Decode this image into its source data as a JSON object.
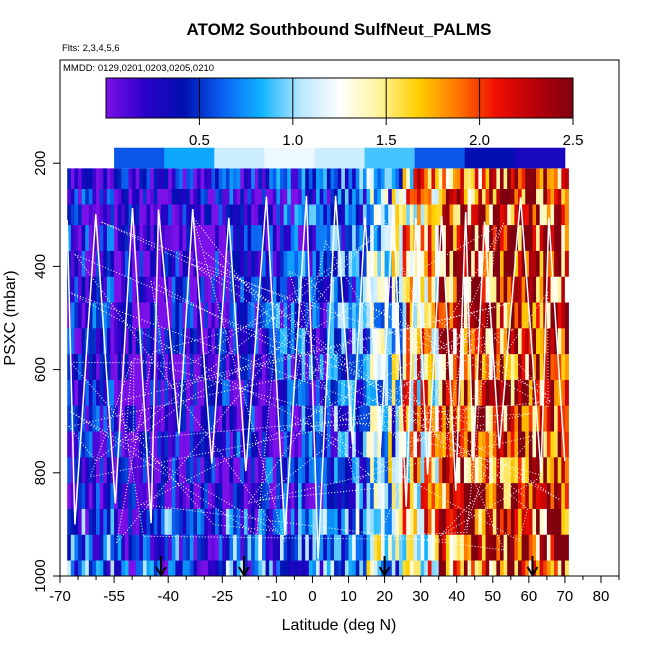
{
  "chart_data": {
    "type": "heatmap",
    "title": "ATOM2 Southbound SulfNeut_PALMS",
    "flights_label": "Flts: 2,3,4,5,6",
    "dates_label": "MMDD: 0129,0201,0203,0205,0210",
    "xlabel": "Latitude (deg N)",
    "ylabel": "PSXC (mbar)",
    "xlim": [
      -70,
      85
    ],
    "ylim": [
      1000,
      0
    ],
    "x_ticks": [
      -70,
      -55,
      -40,
      -25,
      -10,
      0,
      10,
      20,
      30,
      40,
      50,
      60,
      70,
      80
    ],
    "x_minor_ticks": [
      -65,
      -60,
      -50,
      -45,
      -35,
      -30,
      -20,
      -15,
      -5,
      5,
      15,
      25,
      35,
      45,
      55,
      65,
      75,
      85
    ],
    "x_tick_labels": [
      "-70",
      "-55",
      "-40",
      "-25",
      "-10",
      "0",
      "10",
      "20",
      "30",
      "40",
      "50",
      "60",
      "70",
      "80"
    ],
    "y_ticks": [
      200,
      400,
      600,
      800,
      1000
    ],
    "y_tick_labels": [
      "200",
      "400",
      "600",
      "800",
      "1000"
    ],
    "colorbar": {
      "min": 0,
      "max": 2.5,
      "ticks": [
        0.5,
        1.0,
        1.5,
        2.0,
        2.5
      ],
      "tick_labels": [
        "0.5",
        "1.0",
        "1.5",
        "2.0",
        "2.5"
      ],
      "colors": [
        "#7b10e8",
        "#2a00c8",
        "#0010b0",
        "#0a60f0",
        "#10b4ff",
        "#b8e6ff",
        "#ffffff",
        "#fff4a0",
        "#ffd000",
        "#ff7a00",
        "#f01000",
        "#b80008",
        "#800010"
      ]
    },
    "lat_bands": [
      {
        "from": -68,
        "to": -55,
        "value": 0.3
      },
      {
        "from": -55,
        "to": -40,
        "value": 0.15
      },
      {
        "from": -40,
        "to": -25,
        "value": 0.2
      },
      {
        "from": -25,
        "to": -10,
        "value": 0.3
      },
      {
        "from": -10,
        "to": 5,
        "value": 0.45
      },
      {
        "from": 5,
        "to": 15,
        "value": 0.6
      },
      {
        "from": 15,
        "to": 25,
        "value": 1.0
      },
      {
        "from": 25,
        "to": 35,
        "value": 1.6
      },
      {
        "from": 35,
        "to": 50,
        "value": 2.0
      },
      {
        "from": 50,
        "to": 60,
        "value": 2.1
      },
      {
        "from": 60,
        "to": 71,
        "value": 2.0
      }
    ],
    "top_strip": {
      "pressure_from": 170,
      "pressure_to": 210,
      "lat_from": -55,
      "lat_to": 70,
      "values": [
        0.6,
        0.8,
        1.1,
        1.2,
        1.1,
        0.9,
        0.6,
        0.4,
        0.3
      ]
    },
    "surface_markers_lat": [
      -42,
      -19,
      20,
      61
    ]
  }
}
